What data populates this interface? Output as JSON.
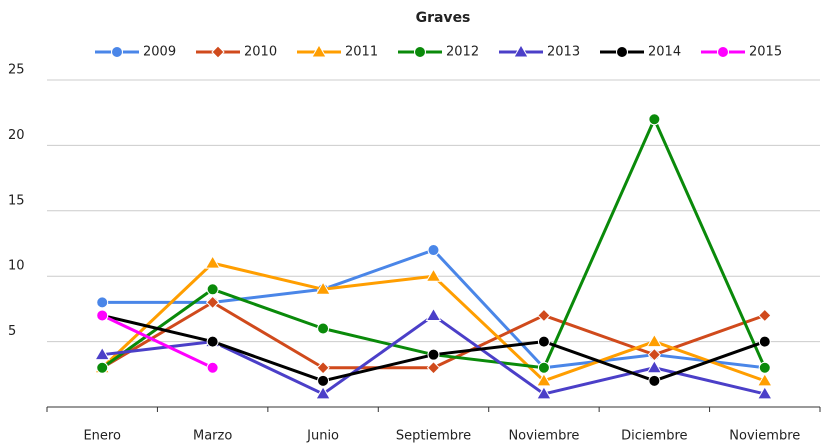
{
  "chart_data": {
    "type": "line",
    "title": "Graves",
    "categories": [
      "Enero",
      "Marzo",
      "Junio",
      "Septiembre",
      "Noviembre",
      "Diciembre",
      "Noviembre"
    ],
    "series": [
      {
        "name": "2009",
        "color": "#4a86e8",
        "marker": "circle",
        "values": [
          8,
          8,
          9,
          12,
          3,
          4,
          3
        ]
      },
      {
        "name": "2010",
        "color": "#d04a1c",
        "marker": "diamond",
        "values": [
          3,
          8,
          3,
          3,
          7,
          4,
          7
        ]
      },
      {
        "name": "2011",
        "color": "#ff9e00",
        "marker": "triangle",
        "values": [
          3,
          11,
          9,
          10,
          2,
          5,
          2
        ]
      },
      {
        "name": "2012",
        "color": "#0a8a0a",
        "marker": "circle",
        "values": [
          3,
          9,
          6,
          4,
          3,
          22,
          3
        ]
      },
      {
        "name": "2013",
        "color": "#4b3fc8",
        "marker": "triangle",
        "values": [
          4,
          5,
          1,
          7,
          1,
          3,
          1
        ]
      },
      {
        "name": "2014",
        "color": "#000000",
        "marker": "circle",
        "values": [
          7,
          5,
          2,
          4,
          5,
          2,
          5
        ]
      },
      {
        "name": "2015",
        "color": "#ff00ff",
        "marker": "circle",
        "values": [
          7,
          3,
          null,
          null,
          null,
          null,
          null
        ]
      }
    ],
    "ylim": [
      0,
      25
    ],
    "yticks": [
      5,
      10,
      15,
      20,
      25
    ],
    "grid": true,
    "legend": "top"
  }
}
